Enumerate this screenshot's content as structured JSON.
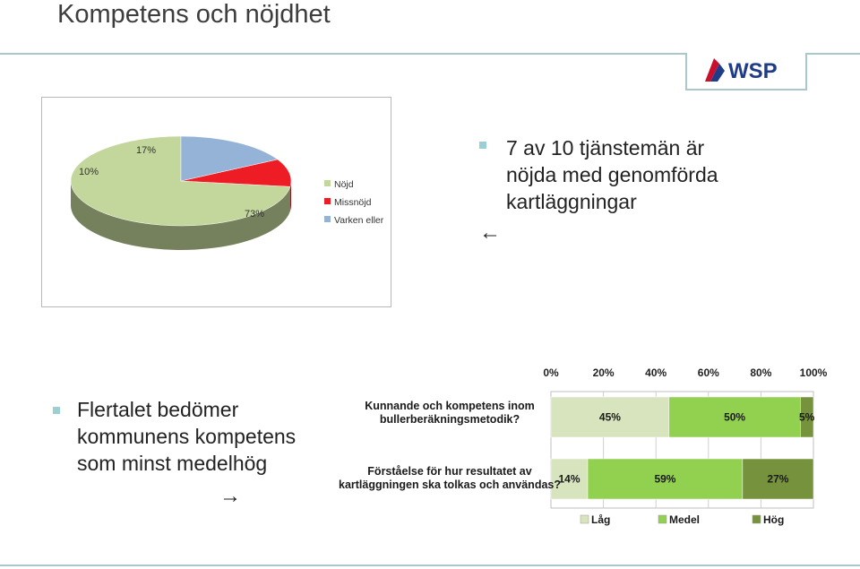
{
  "header": {
    "title": "Kompetens och nöjdhet",
    "logo_text": "WSP"
  },
  "bullets": [
    {
      "text_lines": [
        "7 av 10 tjänstemän är",
        "nöjda med genomförda",
        "kartläggningar"
      ],
      "arrow": "←"
    },
    {
      "text_lines": [
        "Flertalet bedömer",
        "kommunens kompetens",
        "som minst medelhög"
      ],
      "arrow": "→"
    }
  ],
  "chart_data": [
    {
      "type": "pie",
      "categories": [
        "Nöjd",
        "Missnöjd",
        "Varken eller"
      ],
      "values": [
        73,
        10,
        17
      ],
      "labels": [
        "73%",
        "10%",
        "17%"
      ],
      "colors": [
        "#c3d69b",
        "#ee1c25",
        "#95b3d7"
      ],
      "legend": "right"
    },
    {
      "type": "bar",
      "orientation": "horizontal",
      "stacked": true,
      "categories": [
        [
          "Kunnande och kompetens inom",
          "bullerberäkningsmetodik?"
        ],
        [
          "Förståelse för hur resultatet av",
          "kartläggningen ska tolkas och användas?"
        ]
      ],
      "series": [
        {
          "name": "Låg",
          "values": [
            45,
            14
          ],
          "labels": [
            "45%",
            "14%"
          ],
          "color": "#d7e4bd"
        },
        {
          "name": "Medel",
          "values": [
            50,
            59
          ],
          "labels": [
            "50%",
            "59%"
          ],
          "color": "#92d050"
        },
        {
          "name": "Hög",
          "values": [
            5,
            27
          ],
          "labels": [
            "5%",
            "27%"
          ],
          "color": "#76923c"
        }
      ],
      "xlim": [
        0,
        100
      ],
      "xticks": [
        "0%",
        "20%",
        "40%",
        "60%",
        "80%",
        "100%"
      ],
      "grid": true,
      "legend": "bottom"
    }
  ]
}
